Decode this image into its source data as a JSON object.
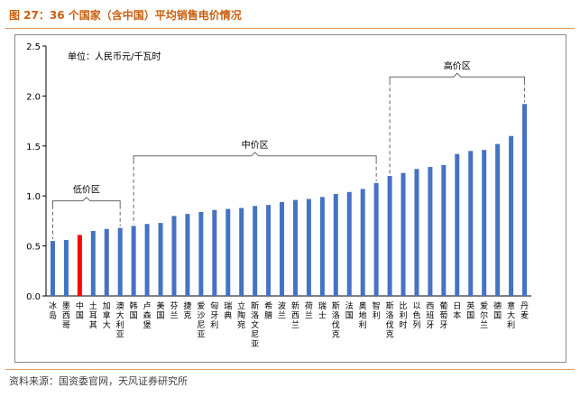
{
  "figure": {
    "title": "图 27：36 个国家（含中国）平均销售电价情况",
    "source": "资料来源：国资委官网，天风证券研究所"
  },
  "chart_data": {
    "type": "bar",
    "unit_label": "单位：人民币元/千瓦时",
    "ylim": [
      0,
      2.5
    ],
    "yticks": [
      "0.0",
      "0.5",
      "1.0",
      "1.5",
      "2.0",
      "2.5"
    ],
    "ytick_values": [
      0,
      0.5,
      1.0,
      1.5,
      2.0,
      2.5
    ],
    "categories": [
      "冰岛",
      "墨西哥",
      "中国",
      "土耳其",
      "加拿大",
      "澳大利亚",
      "韩国",
      "卢森堡",
      "美国",
      "芬兰",
      "捷克",
      "爱沙尼亚",
      "匈牙利",
      "瑞典",
      "立陶宛",
      "斯洛文尼亚",
      "希腊",
      "波兰",
      "新西兰",
      "荷兰",
      "瑞士",
      "斯洛伐克",
      "法国",
      "奥地利",
      "智利",
      "斯洛伐克",
      "比利时",
      "以色列",
      "西班牙",
      "葡萄牙",
      "日本",
      "英国",
      "爱尔兰",
      "德国",
      "意大利",
      "丹麦"
    ],
    "category_labels": [
      "冰\n岛",
      "墨\n西\n哥",
      "中\n国",
      "土\n耳\n其",
      "加\n拿\n大",
      "澳\n大\n利\n亚",
      "韩\n国",
      "卢\n森\n堡",
      "美\n国",
      "芬\n兰",
      "捷\n克",
      "爱\n沙\n尼\n亚",
      "匈\n牙\n利",
      "瑞\n典",
      "立\n陶\n宛",
      "斯\n洛\n文\n尼\n亚",
      "希\n腊",
      "波\n兰",
      "新\n西\n兰",
      "荷\n兰",
      "瑞\n士",
      "斯\n洛\n伐\n克",
      "法\n国",
      "奥\n地\n利",
      "智\n利",
      "斯\n洛\n伐\n克",
      "比\n利\n时",
      "以\n色\n列",
      "西\n班\n牙",
      "葡\n萄\n牙",
      "日\n本",
      "英\n国",
      "爱\n尔\n兰",
      "德\n国",
      "意\n大\n利",
      "丹\n麦"
    ],
    "values": [
      0.55,
      0.56,
      0.61,
      0.65,
      0.67,
      0.68,
      0.7,
      0.72,
      0.73,
      0.8,
      0.82,
      0.84,
      0.86,
      0.87,
      0.88,
      0.9,
      0.91,
      0.94,
      0.96,
      0.97,
      0.99,
      1.02,
      1.04,
      1.07,
      1.13,
      1.2,
      1.23,
      1.27,
      1.29,
      1.31,
      1.42,
      1.45,
      1.46,
      1.52,
      1.6,
      1.92
    ],
    "highlight_index": 2,
    "bar_color": "#4472c4",
    "highlight_color": "#ff0000",
    "groups": [
      {
        "label": "低价区",
        "from": 0,
        "to": 5
      },
      {
        "label": "中价区",
        "from": 6,
        "to": 24
      },
      {
        "label": "高价区",
        "from": 25,
        "to": 35
      }
    ]
  }
}
